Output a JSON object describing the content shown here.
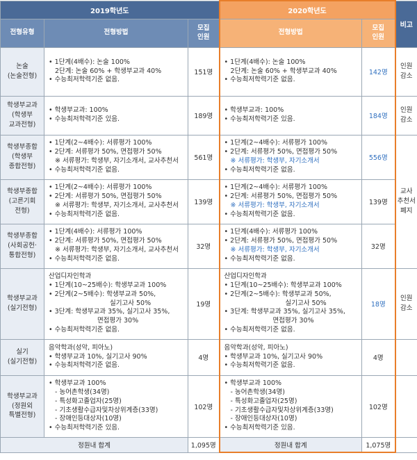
{
  "header": {
    "y2019": "2019학년도",
    "y2020": "2020학년도",
    "bigo": "비고",
    "type_col": "전형유형",
    "method_col": "전형방법",
    "quota_col_1": "모집",
    "quota_col_2": "인원"
  },
  "rows": [
    {
      "type": [
        "논술",
        "(논술전형)"
      ],
      "m2019": [
        "• 1단계(4배수): 논술 100%",
        "2단계: 논술 60% + 학생부교과 40%",
        "• 수능최저학력기준 없음."
      ],
      "n2019": "151명",
      "m2020": [
        "• 1단계(4배수): 논술 100%",
        "2단계: 논술 60% + 학생부교과 40%",
        "• 수능최저학력기준 없음."
      ],
      "n2020": "142명",
      "bigo": [
        "인원",
        "감소"
      ]
    },
    {
      "type": [
        "학생부교과",
        "(학생부",
        "교과전형)"
      ],
      "m2019": [
        "• 학생부교과: 100%",
        "• 수능최저학력기준 있음."
      ],
      "n2019": "189명",
      "m2020": [
        "• 학생부교과: 100%",
        "• 수능최저학력기준 있음."
      ],
      "n2020": "184명",
      "bigo": [
        "인원",
        "감소"
      ]
    },
    {
      "type": [
        "학생부종합",
        "(학생부",
        "종합전형)"
      ],
      "m2019": [
        "• 1단계(2~4배수): 서류평가 100%",
        "• 2단계: 서류평가 50%, 면접평가 50%",
        "※ 서류평가: 학생부, 자기소개서, 교사추천서",
        "• 수능최저학력기준 없음."
      ],
      "n2019": "561명",
      "m2020": [
        "• 1단계(2~4배수): 서류평가 100%",
        "• 2단계: 서류평가 50%, 면접평가 50%",
        "※ 서류평가: 학생부, 자기소개서",
        "• 수능최저학력기준 없음."
      ],
      "n2020": "556명"
    },
    {
      "type": [
        "학생부종합",
        "(고른기회",
        "전형)"
      ],
      "m2019": [
        "• 1단계(2~4배수): 서류평가 100%",
        "• 2단계: 서류평가 50%, 면접평가 50%",
        "※ 서류평가: 학생부, 자기소개서, 교사추천서",
        "• 수능최저학력기준 없음."
      ],
      "n2019": "139명",
      "m2020": [
        "• 1단계(2~4배수): 서류평가 100%",
        "• 2단계: 서류평가 50%, 면접평가 50%",
        "※ 서류평가: 학생부, 자기소개서",
        "• 수능최저학력기준 없음."
      ],
      "n2020": "139명"
    },
    {
      "type": [
        "학생부종합",
        "(사회공헌·",
        "통합전형)"
      ],
      "m2019": [
        "• 1단계(4배수): 서류평가 100%",
        "• 2단계: 서류평가 50%, 면접평가 50%",
        "※ 서류평가: 학생부, 자기소개서, 교사추천서",
        "• 수능최저학력기준 없음."
      ],
      "n2019": "32명",
      "m2020": [
        "• 1단계(4배수): 서류평가 100%",
        "• 2단계: 서류평가 50%, 면접평가 50%",
        "※ 서류평가: 학생부, 자기소개서",
        "• 수능최저학력기준 없음."
      ],
      "n2020": "32명"
    },
    {
      "type": [
        "학생부교과",
        "(실기전형)"
      ],
      "m2019": [
        "산업디자인학과",
        "• 1단계(10~25배수): 학생부교과 100%",
        "• 2단계(2~5배수): 학생부교과 50%,",
        "실기고사 50%",
        "• 3단계: 학생부교과 35%, 실기고사 35%,",
        "면접평가 30%",
        "• 수능최저학력기준 없음."
      ],
      "n2019": "19명",
      "m2020": [
        "산업디자인학과",
        "• 1단계(10~25배수): 학생부교과 100%",
        "• 2단계(2~5배수): 학생부교과 50%,",
        "실기고사 50%",
        "• 3단계: 학생부교과 35%, 실기고사 35%,",
        "면접평가 30%",
        "• 수능최저학력기준 없음."
      ],
      "n2020": "18명",
      "bigo": [
        "인원",
        "감소"
      ]
    },
    {
      "type": [
        "실기",
        "(실기전형)"
      ],
      "m2019": [
        "음악학과(성악, 피아노)",
        "• 학생부교과 10%, 실기고사 90%",
        "• 수능최저학력기준 없음."
      ],
      "n2019": "4명",
      "m2020": [
        "음악학과(성악, 피아노)",
        "• 학생부교과 10%, 실기고사 90%",
        "• 수능최저학력기준 없음."
      ],
      "n2020": "4명"
    },
    {
      "type": [
        "학생부교과",
        "(정원외",
        "특별전형)"
      ],
      "m2019": [
        "• 학생부교과 100%",
        "- 농어촌학생(34명)",
        "- 특성화고졸업자(25명)",
        "- 기초생활수급자및차상위계층(33명)",
        "- 장애인등대상자(10명)",
        "• 수능최저학력기준 있음."
      ],
      "n2019": "102명",
      "m2020": [
        "• 학생부교과 100%",
        "- 농어촌학생(34명)",
        "- 특성화고졸업자(25명)",
        "- 기초생활수급자및차상위계층(33명)",
        "- 장애인등대상자(10명)",
        "• 수능최저학력기준 있음."
      ],
      "n2020": "102명"
    }
  ],
  "merged_bigo": [
    "교사",
    "추천서",
    "폐지"
  ],
  "total": {
    "label2019": "정원내 합계",
    "n2019": "1,095명",
    "label2020": "정원내 합계",
    "n2020": "1,075명"
  },
  "colors": {
    "header_2019": "#4a6a97",
    "header_2020": "#f4a261",
    "highlight_border": "#e87e2a",
    "changed_text": "#2f6fbf"
  }
}
